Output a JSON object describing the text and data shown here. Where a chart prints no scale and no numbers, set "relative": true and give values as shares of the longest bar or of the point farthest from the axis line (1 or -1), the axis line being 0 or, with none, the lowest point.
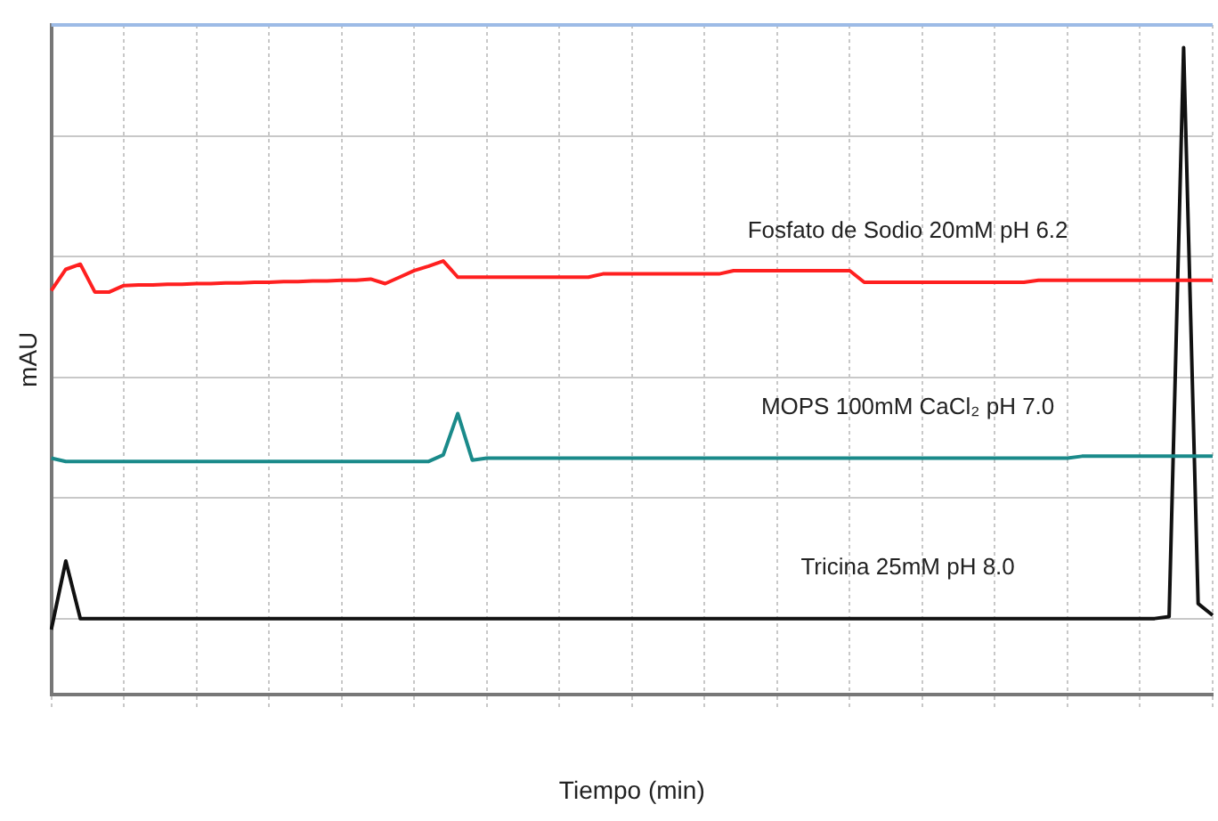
{
  "chart_data": {
    "type": "line",
    "relative": true,
    "xlabel": "Tiempo (min)",
    "ylabel": "mAU",
    "grid": true,
    "legend": false,
    "marker": "none",
    "line_style": "solid",
    "categories": [
      null,
      null,
      null,
      null,
      null,
      null,
      null,
      null,
      null,
      null,
      null,
      null,
      null,
      null,
      null,
      null,
      null,
      null,
      null,
      null,
      null,
      null,
      null,
      null,
      null,
      null,
      null,
      null,
      null,
      null,
      null,
      null,
      null,
      null,
      null,
      null,
      null,
      null,
      null,
      null,
      null,
      null,
      null,
      null,
      null,
      null,
      null,
      null,
      null,
      null,
      null,
      null,
      null,
      null,
      null,
      null,
      null,
      null,
      null,
      null,
      null,
      null,
      null,
      null,
      null,
      null,
      null,
      null,
      null,
      null,
      null,
      null,
      null,
      null,
      null,
      null,
      null,
      null,
      null,
      null,
      null
    ],
    "series": [
      {
        "name": "Fosfato de Sodio 20mM pH 6.2",
        "color": "#ff2020",
        "values": [
          0.624,
          0.657,
          0.665,
          0.622,
          0.622,
          0.632,
          0.633,
          0.633,
          0.634,
          0.634,
          0.635,
          0.635,
          0.636,
          0.636,
          0.637,
          0.637,
          0.638,
          0.638,
          0.639,
          0.639,
          0.64,
          0.64,
          0.642,
          0.635,
          0.645,
          0.655,
          0.662,
          0.67,
          0.645,
          0.645,
          0.645,
          0.645,
          0.645,
          0.645,
          0.645,
          0.645,
          0.645,
          0.645,
          0.65,
          0.65,
          0.65,
          0.65,
          0.65,
          0.65,
          0.65,
          0.65,
          0.65,
          0.655,
          0.655,
          0.655,
          0.655,
          0.655,
          0.655,
          0.655,
          0.655,
          0.655,
          0.637,
          0.637,
          0.637,
          0.637,
          0.637,
          0.637,
          0.637,
          0.637,
          0.637,
          0.637,
          0.637,
          0.637,
          0.64,
          0.64,
          0.64,
          0.64,
          0.64,
          0.64,
          0.64,
          0.64,
          0.64,
          0.64,
          0.64,
          0.64,
          0.64
        ]
      },
      {
        "name": "MOPS 100mM CaCl₂ pH 7.0",
        "color": "#1a8a8a",
        "values": [
          0.365,
          0.36,
          0.36,
          0.36,
          0.36,
          0.36,
          0.36,
          0.36,
          0.36,
          0.36,
          0.36,
          0.36,
          0.36,
          0.36,
          0.36,
          0.36,
          0.36,
          0.36,
          0.36,
          0.36,
          0.36,
          0.36,
          0.36,
          0.36,
          0.36,
          0.36,
          0.36,
          0.37,
          0.434,
          0.362,
          0.365,
          0.365,
          0.365,
          0.365,
          0.365,
          0.365,
          0.365,
          0.365,
          0.365,
          0.365,
          0.365,
          0.365,
          0.365,
          0.365,
          0.365,
          0.365,
          0.365,
          0.365,
          0.365,
          0.365,
          0.365,
          0.365,
          0.365,
          0.365,
          0.365,
          0.365,
          0.365,
          0.365,
          0.365,
          0.365,
          0.365,
          0.365,
          0.365,
          0.365,
          0.365,
          0.365,
          0.365,
          0.365,
          0.365,
          0.365,
          0.365,
          0.368,
          0.368,
          0.368,
          0.368,
          0.368,
          0.368,
          0.368,
          0.368,
          0.368,
          0.368
        ]
      },
      {
        "name": "Tricina 25mM pH 8.0",
        "color": "#111111",
        "values": [
          0.1,
          0.206,
          0.117,
          0.117,
          0.117,
          0.117,
          0.117,
          0.117,
          0.117,
          0.117,
          0.117,
          0.117,
          0.117,
          0.117,
          0.117,
          0.117,
          0.117,
          0.117,
          0.117,
          0.117,
          0.117,
          0.117,
          0.117,
          0.117,
          0.117,
          0.117,
          0.117,
          0.117,
          0.117,
          0.117,
          0.117,
          0.117,
          0.117,
          0.117,
          0.117,
          0.117,
          0.117,
          0.117,
          0.117,
          0.117,
          0.117,
          0.117,
          0.117,
          0.117,
          0.117,
          0.117,
          0.117,
          0.117,
          0.117,
          0.117,
          0.117,
          0.117,
          0.117,
          0.117,
          0.117,
          0.117,
          0.117,
          0.117,
          0.117,
          0.117,
          0.117,
          0.117,
          0.117,
          0.117,
          0.117,
          0.117,
          0.117,
          0.117,
          0.117,
          0.117,
          0.117,
          0.117,
          0.117,
          0.117,
          0.117,
          0.117,
          0.117,
          0.12,
          1,
          0.14,
          0.122
        ]
      }
    ]
  }
}
